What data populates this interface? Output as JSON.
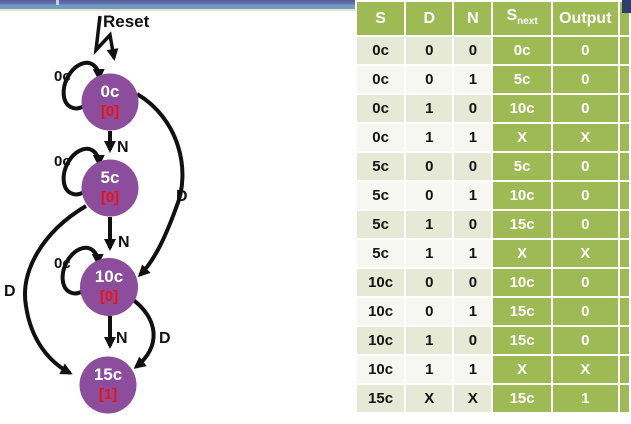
{
  "diagram": {
    "reset_label": "Reset",
    "states": [
      {
        "name": "0c",
        "output": "[0]"
      },
      {
        "name": "5c",
        "output": "[0]"
      },
      {
        "name": "10c",
        "output": "[0]"
      },
      {
        "name": "15c",
        "output": "[1]"
      }
    ],
    "edge_labels": {
      "nickel": "N",
      "dime": "D",
      "no_coin": "0c"
    }
  },
  "table": {
    "headers": [
      {
        "text": "S"
      },
      {
        "text": "D"
      },
      {
        "text": "N"
      },
      {
        "text": "S",
        "sub": "next"
      },
      {
        "text": "Output"
      }
    ],
    "rows": [
      [
        "0c",
        "0",
        "0",
        "0c",
        "0"
      ],
      [
        "0c",
        "0",
        "1",
        "5c",
        "0"
      ],
      [
        "0c",
        "1",
        "0",
        "10c",
        "0"
      ],
      [
        "0c",
        "1",
        "1",
        "X",
        "X"
      ],
      [
        "5c",
        "0",
        "0",
        "5c",
        "0"
      ],
      [
        "5c",
        "0",
        "1",
        "10c",
        "0"
      ],
      [
        "5c",
        "1",
        "0",
        "15c",
        "0"
      ],
      [
        "5c",
        "1",
        "1",
        "X",
        "X"
      ],
      [
        "10c",
        "0",
        "0",
        "10c",
        "0"
      ],
      [
        "10c",
        "0",
        "1",
        "15c",
        "0"
      ],
      [
        "10c",
        "1",
        "0",
        "15c",
        "0"
      ],
      [
        "10c",
        "1",
        "1",
        "X",
        "X"
      ],
      [
        "15c",
        "X",
        "X",
        "15c",
        "1"
      ]
    ]
  },
  "colors": {
    "state_fill": "#8b4d9c",
    "state_output_text": "#ee1111",
    "table_green": "#9eba55",
    "row_dark": "#e6e9d5",
    "row_light": "#f6f7f0",
    "titlebar_blue_top": "#6a74ae",
    "titlebar_blue_bottom": "#6f9cc5",
    "corner_block_navy": "#2e3f6d"
  }
}
